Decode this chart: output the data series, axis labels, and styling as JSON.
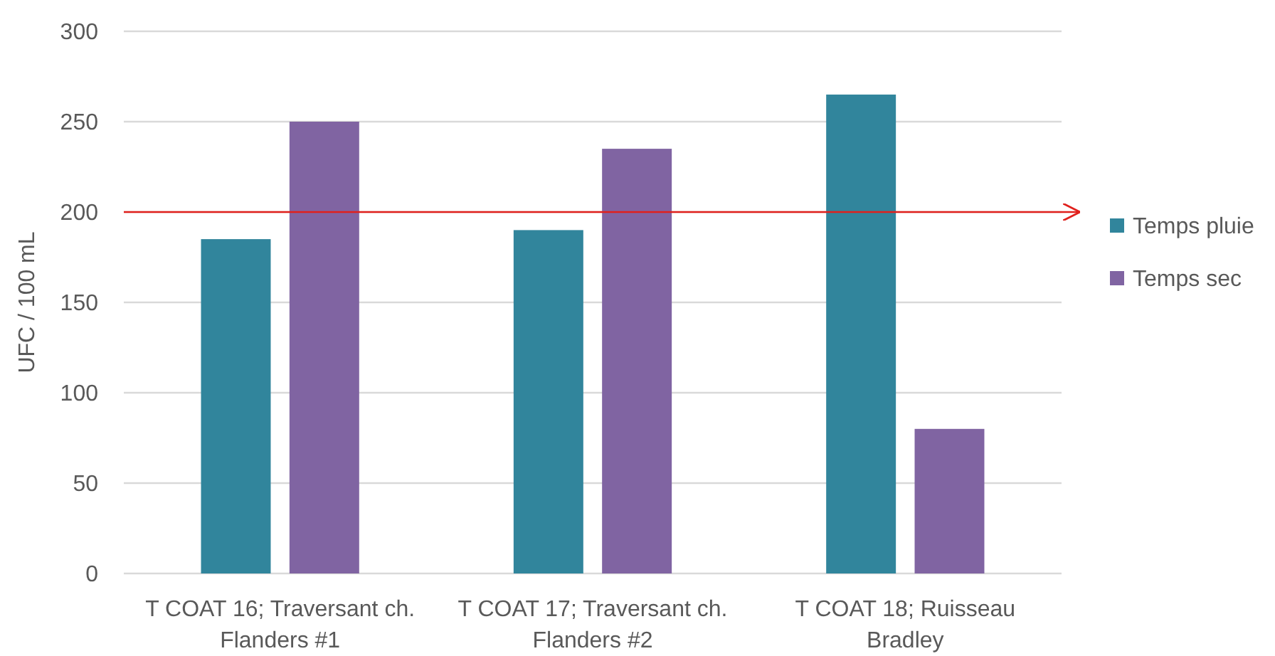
{
  "chart_data": {
    "type": "bar",
    "ylabel": "UFC / 100 mL",
    "categories": [
      "T COAT 16; Traversant ch. Flanders #1",
      "T COAT 17; Traversant ch. Flanders #2",
      "T COAT 18; Ruisseau Bradley"
    ],
    "series": [
      {
        "name": "Temps pluie",
        "color": "#31859c",
        "values": [
          185,
          190,
          265
        ]
      },
      {
        "name": "Temps sec",
        "color": "#8064a2",
        "values": [
          250,
          235,
          80
        ]
      }
    ],
    "ylim": [
      0,
      300
    ],
    "yticks": [
      0,
      50,
      100,
      150,
      200,
      250,
      300
    ],
    "grid": "y",
    "legend": "right",
    "ref_lines": [
      {
        "axis": "y",
        "value": 200,
        "color": "#e0201c"
      }
    ]
  }
}
